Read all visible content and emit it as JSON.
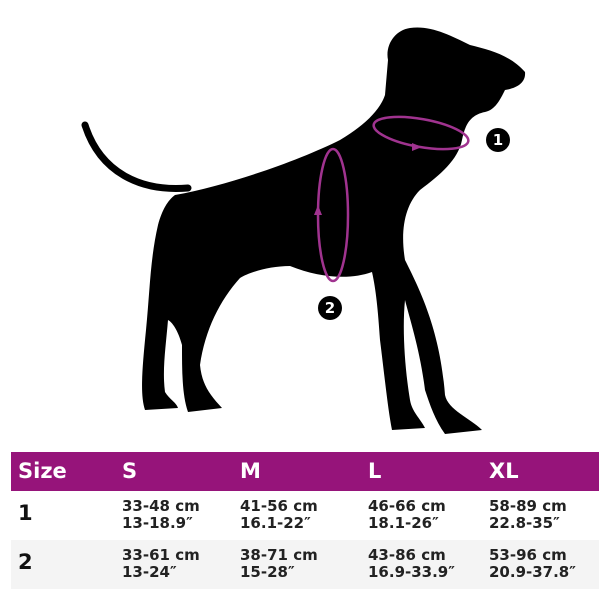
{
  "colors": {
    "header_bg": "#96147a",
    "measure_ring": "#a0338f",
    "silhouette": "#000000"
  },
  "markers": {
    "neck": "1",
    "chest": "2"
  },
  "table": {
    "header": [
      "Size",
      "S",
      "M",
      "L",
      "XL"
    ],
    "rows": [
      {
        "label": "1",
        "cells": [
          [
            "33-48 cm",
            "13-18.9″"
          ],
          [
            "41-56 cm",
            "16.1-22″"
          ],
          [
            "46-66 cm",
            "18.1-26″"
          ],
          [
            "58-89 cm",
            "22.8-35″"
          ]
        ]
      },
      {
        "label": "2",
        "cells": [
          [
            "33-61 cm",
            "13-24″"
          ],
          [
            "38-71 cm",
            "15-28″"
          ],
          [
            "43-86 cm",
            "16.9-33.9″"
          ],
          [
            "53-96 cm",
            "20.9-37.8″"
          ]
        ]
      }
    ]
  }
}
